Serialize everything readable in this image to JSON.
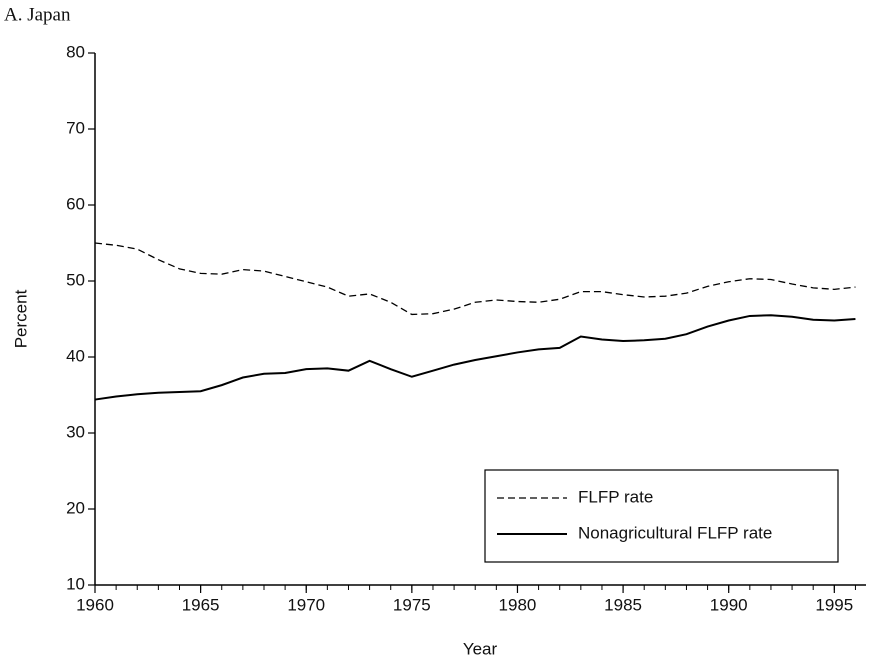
{
  "chart_data": {
    "type": "line",
    "title": "A. Japan",
    "x_label": "Year",
    "y_label": "Percent",
    "x": [
      1960,
      1961,
      1962,
      1963,
      1964,
      1965,
      1966,
      1967,
      1968,
      1969,
      1970,
      1971,
      1972,
      1973,
      1974,
      1975,
      1976,
      1977,
      1978,
      1979,
      1980,
      1981,
      1982,
      1983,
      1984,
      1985,
      1986,
      1987,
      1988,
      1989,
      1990,
      1991,
      1992,
      1993,
      1994,
      1995,
      1996
    ],
    "series": [
      {
        "name": "FLFP rate",
        "color": "#000000",
        "dash": "dashed",
        "values": [
          55.0,
          54.7,
          54.2,
          52.8,
          51.6,
          51.0,
          50.9,
          51.5,
          51.3,
          50.6,
          49.9,
          49.2,
          48.0,
          48.3,
          47.2,
          45.6,
          45.7,
          46.3,
          47.2,
          47.5,
          47.3,
          47.2,
          47.6,
          48.6,
          48.6,
          48.2,
          47.9,
          48.0,
          48.4,
          49.3,
          49.9,
          50.3,
          50.2,
          49.6,
          49.1,
          48.9,
          49.2
        ]
      },
      {
        "name": "Nonagricultural FLFP rate",
        "color": "#000000",
        "dash": "solid",
        "values": [
          34.4,
          34.8,
          35.1,
          35.3,
          35.4,
          35.5,
          36.3,
          37.3,
          37.8,
          37.9,
          38.4,
          38.5,
          38.2,
          39.5,
          38.4,
          37.4,
          38.2,
          39.0,
          39.6,
          40.1,
          40.6,
          41.0,
          41.2,
          42.7,
          42.3,
          42.1,
          42.2,
          42.4,
          43.0,
          44.0,
          44.8,
          45.4,
          45.5,
          45.3,
          44.9,
          44.8,
          45.0
        ]
      }
    ],
    "xlim": [
      1960,
      1996.5
    ],
    "xticks": [
      1960,
      1965,
      1970,
      1975,
      1980,
      1985,
      1990,
      1995
    ],
    "ylim": [
      10,
      80
    ],
    "yticks": [
      10,
      20,
      30,
      40,
      50,
      60,
      70,
      80
    ],
    "grid": false,
    "legend": "lower right"
  }
}
